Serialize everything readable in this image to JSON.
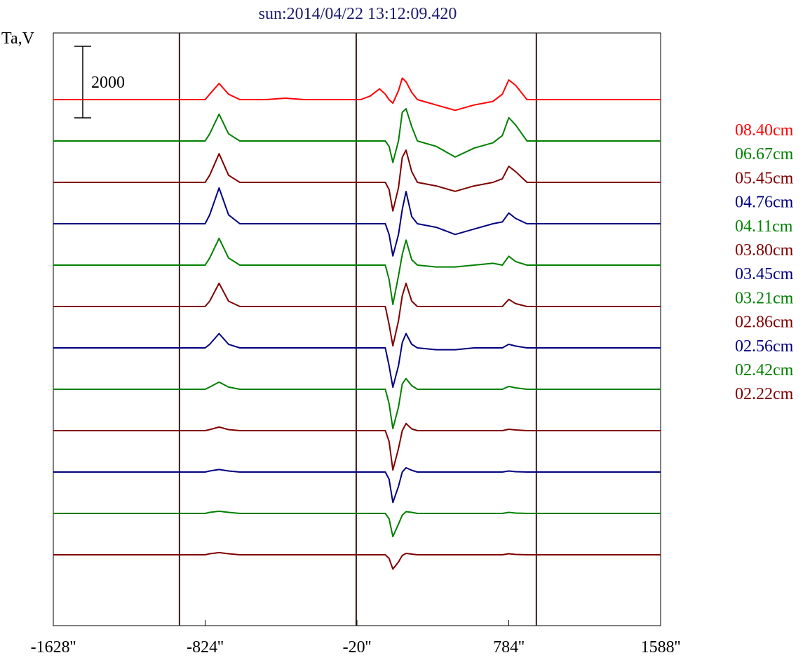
{
  "chart_data": {
    "type": "line",
    "title": "sun:2014/04/22 13:12:09.420",
    "ylabel": "Ta,V",
    "xlabel": "",
    "x_tick_labels": [
      "-1628''",
      "-824''",
      "-20''",
      "784''",
      "1588''"
    ],
    "x_ticks": [
      -1628,
      -824,
      -20,
      784,
      1588
    ],
    "xlim": [
      -1628,
      1588
    ],
    "scale_bar": {
      "label": "2000",
      "value": 2000
    },
    "vertical_markers": [
      -960,
      -24,
      930
    ],
    "grid": false,
    "legend_position": "right",
    "series_note": "vertically offset stacked profiles, one per wavelength",
    "x": [
      -1628,
      -1100,
      -960,
      -900,
      -824,
      -800,
      -750,
      -700,
      -640,
      -500,
      -400,
      -300,
      -200,
      -100,
      -24,
      0,
      50,
      100,
      130,
      150,
      170,
      200,
      220,
      240,
      270,
      300,
      400,
      500,
      600,
      700,
      750,
      784,
      820,
      880,
      930,
      1100,
      1588
    ],
    "series": [
      {
        "name": "08.40cm",
        "color": "#ff0000",
        "values": [
          0,
          0,
          0,
          0,
          0,
          150,
          450,
          150,
          0,
          0,
          40,
          0,
          0,
          0,
          0,
          0,
          100,
          300,
          150,
          0,
          -100,
          250,
          600,
          500,
          200,
          0,
          -150,
          -300,
          -150,
          -50,
          150,
          550,
          400,
          0,
          0,
          0,
          0
        ]
      },
      {
        "name": "06.67cm",
        "color": "#008000",
        "values": [
          0,
          0,
          0,
          0,
          0,
          200,
          750,
          200,
          0,
          0,
          0,
          0,
          0,
          0,
          0,
          0,
          0,
          0,
          0,
          -150,
          -600,
          0,
          800,
          900,
          400,
          0,
          -150,
          -450,
          -200,
          -50,
          150,
          650,
          450,
          0,
          0,
          0,
          0
        ]
      },
      {
        "name": "05.45cm",
        "color": "#800000",
        "values": [
          0,
          0,
          0,
          0,
          0,
          200,
          800,
          200,
          0,
          0,
          0,
          0,
          0,
          0,
          0,
          0,
          0,
          0,
          0,
          -200,
          -800,
          -150,
          700,
          900,
          300,
          0,
          -100,
          -250,
          -100,
          0,
          100,
          450,
          300,
          0,
          0,
          0,
          0
        ]
      },
      {
        "name": "04.76cm",
        "color": "#000080",
        "values": [
          0,
          0,
          0,
          0,
          0,
          250,
          1000,
          250,
          0,
          0,
          0,
          0,
          0,
          0,
          0,
          0,
          0,
          0,
          0,
          -300,
          -900,
          -300,
          400,
          900,
          200,
          0,
          -100,
          -300,
          -150,
          0,
          50,
          300,
          150,
          0,
          0,
          0,
          0
        ]
      },
      {
        "name": "04.11cm",
        "color": "#008000",
        "values": [
          0,
          0,
          0,
          0,
          0,
          200,
          750,
          200,
          0,
          0,
          0,
          0,
          0,
          0,
          0,
          0,
          0,
          0,
          0,
          -400,
          -1100,
          -300,
          300,
          700,
          150,
          0,
          -50,
          -50,
          0,
          50,
          0,
          250,
          100,
          0,
          0,
          0,
          0
        ]
      },
      {
        "name": "03.80cm",
        "color": "#800000",
        "values": [
          0,
          0,
          0,
          0,
          0,
          150,
          650,
          150,
          0,
          0,
          0,
          0,
          0,
          0,
          0,
          0,
          0,
          0,
          0,
          -500,
          -1100,
          -400,
          300,
          650,
          150,
          0,
          0,
          0,
          0,
          0,
          0,
          200,
          80,
          0,
          0,
          0,
          0
        ]
      },
      {
        "name": "03.45cm",
        "color": "#000080",
        "values": [
          0,
          0,
          0,
          0,
          0,
          100,
          400,
          100,
          0,
          0,
          0,
          0,
          0,
          0,
          0,
          0,
          0,
          0,
          0,
          -500,
          -1100,
          -500,
          150,
          400,
          100,
          0,
          -50,
          -50,
          0,
          0,
          0,
          100,
          50,
          0,
          0,
          0,
          0
        ]
      },
      {
        "name": "03.21cm",
        "color": "#008000",
        "values": [
          0,
          0,
          0,
          0,
          0,
          60,
          200,
          60,
          0,
          0,
          0,
          0,
          0,
          0,
          0,
          0,
          0,
          0,
          0,
          -400,
          -1100,
          -500,
          150,
          300,
          100,
          0,
          0,
          0,
          0,
          0,
          0,
          80,
          40,
          0,
          0,
          0,
          0
        ]
      },
      {
        "name": "02.86cm",
        "color": "#800000",
        "values": [
          0,
          0,
          0,
          0,
          0,
          30,
          100,
          30,
          0,
          0,
          0,
          0,
          0,
          0,
          0,
          0,
          0,
          0,
          0,
          -300,
          -1100,
          -500,
          0,
          200,
          50,
          0,
          0,
          0,
          0,
          0,
          0,
          40,
          20,
          0,
          0,
          0,
          0
        ]
      },
      {
        "name": "02.56cm",
        "color": "#000080",
        "values": [
          0,
          0,
          0,
          0,
          0,
          30,
          70,
          30,
          0,
          0,
          0,
          0,
          0,
          0,
          0,
          0,
          0,
          0,
          0,
          -200,
          -850,
          -400,
          0,
          120,
          50,
          0,
          0,
          0,
          0,
          0,
          0,
          30,
          10,
          0,
          0,
          0,
          0
        ]
      },
      {
        "name": "02.42cm",
        "color": "#008000",
        "values": [
          0,
          0,
          0,
          0,
          0,
          30,
          60,
          30,
          0,
          0,
          0,
          0,
          0,
          0,
          0,
          0,
          0,
          0,
          0,
          -150,
          -650,
          -300,
          -50,
          50,
          30,
          0,
          0,
          0,
          0,
          0,
          0,
          30,
          10,
          0,
          0,
          0,
          0
        ]
      },
      {
        "name": "02.22cm",
        "color": "#800000",
        "values": [
          0,
          0,
          0,
          0,
          0,
          30,
          60,
          30,
          0,
          0,
          0,
          0,
          0,
          0,
          0,
          0,
          0,
          0,
          0,
          -100,
          -400,
          -200,
          -20,
          40,
          20,
          0,
          0,
          0,
          0,
          0,
          0,
          30,
          10,
          0,
          0,
          0,
          0
        ]
      }
    ]
  }
}
